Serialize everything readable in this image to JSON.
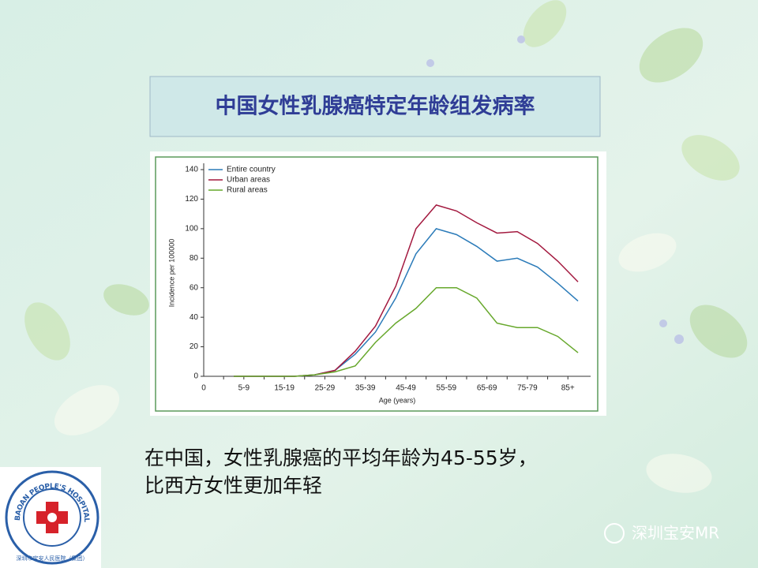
{
  "slide_title": "中国女性乳腺癌特定年龄组发病率",
  "caption": [
    "在中国，女性乳腺癌的平均年龄为45-55岁，",
    "比西方女性更加年轻"
  ],
  "logo": {
    "ring_text": "BAOAN PEOPLE'S HOSPITAL (GROUP)",
    "inner_text": "深圳市宝安人民医院（集团）"
  },
  "watermark": "深圳宝安MR",
  "chart_data": {
    "type": "line",
    "x_label": "Age (years)",
    "y_label": "Incidence per 100000",
    "categories": [
      "0",
      "5-9",
      null,
      "15-19",
      null,
      "25-29",
      null,
      "35-39",
      null,
      "45-49",
      null,
      "55-59",
      null,
      "65-69",
      null,
      "75-79",
      null,
      "85+"
    ],
    "series": [
      {
        "name": "Entire country",
        "color": "#2b7bb9",
        "values": [
          0,
          0,
          0,
          0,
          1,
          4,
          15,
          30,
          53,
          83,
          100,
          96,
          88,
          78,
          80,
          74,
          63,
          51
        ]
      },
      {
        "name": "Urban areas",
        "color": "#a3193f",
        "values": [
          0,
          0,
          0,
          0,
          1,
          4,
          17,
          34,
          61,
          100,
          116,
          112,
          104,
          97,
          98,
          90,
          78,
          64
        ]
      },
      {
        "name": "Rural areas",
        "color": "#67a82c",
        "values": [
          0,
          0,
          0,
          0,
          1,
          3,
          7,
          23,
          36,
          46,
          60,
          60,
          53,
          36,
          33,
          33,
          27,
          16
        ]
      }
    ],
    "ylim": [
      0,
      140
    ],
    "yticks": [
      0,
      20,
      40,
      60,
      80,
      100,
      120,
      140
    ],
    "legend": "upper-left",
    "grid": false
  }
}
